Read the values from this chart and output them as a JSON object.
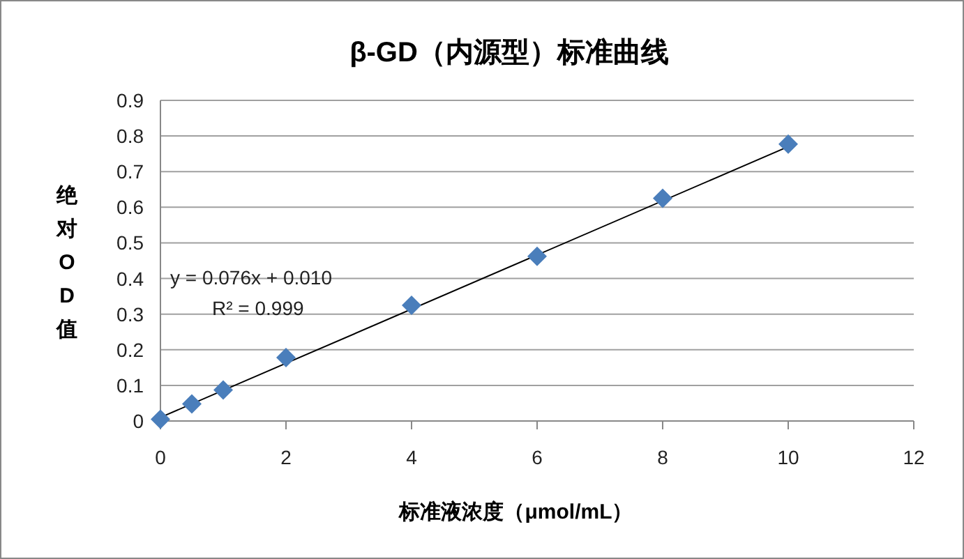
{
  "chart_data": {
    "type": "scatter",
    "title": "β-GD（内源型）标准曲线",
    "xlabel": "标准液浓度（μmol/mL）",
    "ylabel": "绝对OD值",
    "xlim": [
      0,
      12
    ],
    "xticks": [
      0,
      2,
      4,
      6,
      8,
      10,
      12
    ],
    "ylim": [
      0,
      0.9
    ],
    "yticks": [
      0,
      0.1,
      0.2,
      0.3,
      0.4,
      0.5,
      0.6,
      0.7,
      0.8,
      0.9
    ],
    "grid": "y",
    "series": [
      {
        "marker": "diamond",
        "color": "#4a7ebb",
        "x": [
          0,
          0.5,
          1,
          2,
          4,
          6,
          8,
          10
        ],
        "values": [
          0.005,
          0.048,
          0.087,
          0.178,
          0.325,
          0.462,
          0.625,
          0.777
        ]
      },
      {
        "type": "line",
        "marker": "none",
        "color": "#000000",
        "x": [
          0,
          10
        ],
        "values": [
          0.01,
          0.77
        ]
      }
    ],
    "annotations": [
      "y = 0.076x + 0.010",
      "R² = 0.999"
    ]
  }
}
